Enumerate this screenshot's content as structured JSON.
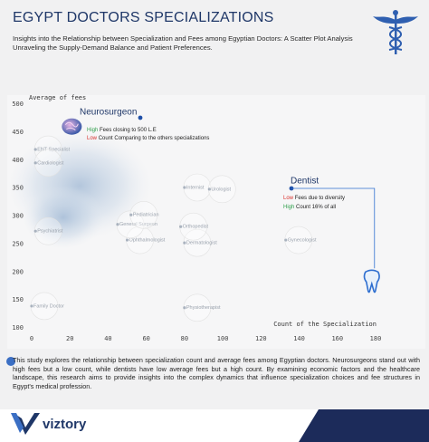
{
  "header": {
    "title": "EGYPT DOCTORS SPECIALIZATIONS",
    "subtitle": [
      "Insights into the Relationship between Specialization and Fees among Egyptian Doctors: A Scatter Plot Analysis",
      "Unraveling the Supply-Demand Balance and Patient Preferences."
    ]
  },
  "chart_data": {
    "type": "scatter",
    "y_label": "Average of fees",
    "x_label": "Count of the Specialization",
    "labels": [
      "Neurosurgeon",
      "Dentist",
      "ENT Specialist",
      "Cardiologist",
      "Psychiatrist",
      "Family Doctor",
      "Physiotherapist",
      "Gynecologist",
      "Dermatologist",
      "Ophthalmologist",
      "Orthopedist",
      "General Surgeon",
      "Pediatrician",
      "Internist",
      "Urologist"
    ],
    "x": [
      21,
      178,
      2,
      2,
      2,
      0,
      80,
      133,
      80,
      50,
      78,
      45,
      52,
      80,
      93
    ],
    "values": [
      460,
      187,
      419,
      395,
      273,
      139,
      136,
      257,
      252,
      257,
      281,
      285,
      302,
      351,
      348
    ],
    "color": "#8a97a8",
    "xlim": [
      0,
      180
    ],
    "xticks": [
      0,
      20,
      40,
      60,
      80,
      100,
      120,
      140,
      160,
      180
    ],
    "ylim": [
      100,
      500
    ],
    "yticks": [
      100,
      150,
      200,
      250,
      300,
      350,
      400,
      450,
      500
    ],
    "grid": false,
    "annotations": [
      {
        "label": "Neurosurgeon",
        "lines": [
          {
            "key": "High",
            "color": "#2e9e4a",
            "text": "Fees closing to 500 L.E"
          },
          {
            "key": "Low",
            "color": "#d9302c",
            "text": "Count Comparing to the others specializations"
          }
        ]
      },
      {
        "label": "Dentist",
        "lines": [
          {
            "key": "Low",
            "color": "#d9302c",
            "text": "Fees due to diversity"
          },
          {
            "key": "High",
            "color": "#2e9e4a",
            "text": "Count 16% of all"
          }
        ]
      }
    ]
  },
  "body": "This study explores the relationship between specialization count and average fees among Egyptian doctors. Neurosurgeons stand out with high fees but a low count, while dentists have low average fees but a high count. By examining economic factors and the healthcare landscape, this research aims to provide insights into the complex dynamics that influence specialization choices and fee structures in Egypt's medical profession.",
  "footer": {
    "logo": "viztory"
  }
}
